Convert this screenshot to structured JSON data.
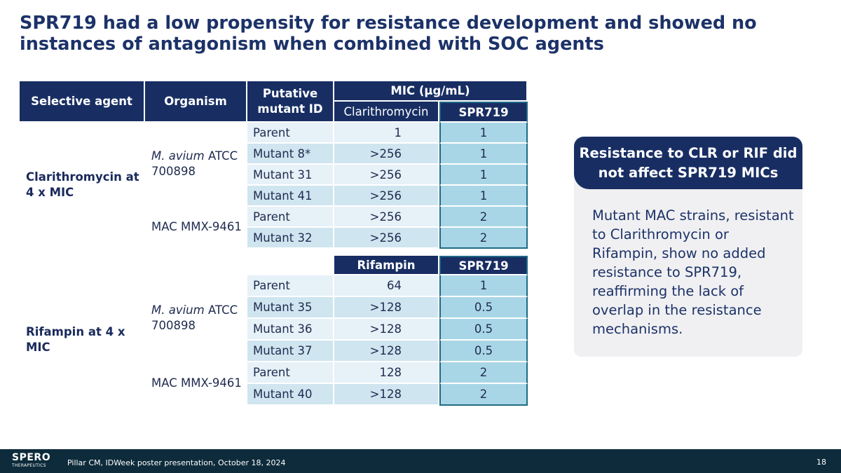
{
  "title": "SPR719 had a low propensity for resistance development and showed no instances of antagonism when combined with SOC agents",
  "table": {
    "headers": {
      "agent": "Selective agent",
      "organism": "Organism",
      "mutant_line1": "Putative",
      "mutant_line2": "mutant ID",
      "mic_group": "MIC (µg/mL)",
      "clr": "Clarithromycin",
      "spr": "SPR719",
      "rif": "Rifampin",
      "spr2": "SPR719"
    },
    "clr_block": {
      "agent": "Clarithromycin at 4 x MIC",
      "org1_italic": "M. avium",
      "org1_rest": " ATCC 700898",
      "org2": "MAC MMX-9461",
      "rows": [
        {
          "mutant": "Parent",
          "mic": "1",
          "spr": "1"
        },
        {
          "mutant": "Mutant 8*",
          "mic": ">256",
          "spr": "1"
        },
        {
          "mutant": "Mutant 31",
          "mic": ">256",
          "spr": "1"
        },
        {
          "mutant": "Mutant 41",
          "mic": ">256",
          "spr": "1"
        },
        {
          "mutant": "Parent",
          "mic": ">256",
          "spr": "2"
        },
        {
          "mutant": "Mutant 32",
          "mic": ">256",
          "spr": "2"
        }
      ]
    },
    "rif_block": {
      "agent": "Rifampin at 4 x MIC",
      "org1_italic": "M. avium",
      "org1_rest": " ATCC 700898",
      "org2": "MAC MMX-9461",
      "rows": [
        {
          "mutant": "Parent",
          "mic": "64",
          "spr": "1"
        },
        {
          "mutant": "Mutant 35",
          "mic": ">128",
          "spr": "0.5"
        },
        {
          "mutant": "Mutant 36",
          "mic": ">128",
          "spr": "0.5"
        },
        {
          "mutant": "Mutant 37",
          "mic": ">128",
          "spr": "0.5"
        },
        {
          "mutant": "Parent",
          "mic": "128",
          "spr": "2"
        },
        {
          "mutant": "Mutant 40",
          "mic": ">128",
          "spr": "2"
        }
      ]
    }
  },
  "callout": {
    "heading": "Resistance to CLR or RIF did not affect SPR719 MICs",
    "body": "Mutant MAC strains, resistant to Clarithromycin or Rifampin, show no added resistance to SPR719, reaffirming the lack of overlap in the resistance mechanisms."
  },
  "footer": {
    "logo_main": "SPERO",
    "logo_sub": "THERAPEUTICS",
    "citation": "Pillar CM, IDWeek poster presentation, October 18, 2024",
    "page_number": "18"
  }
}
